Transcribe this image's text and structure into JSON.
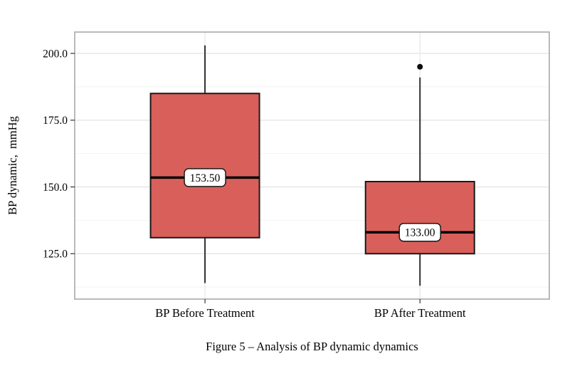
{
  "figure": {
    "caption": "Figure 5 – Analysis of BP dynamic dynamics",
    "background": "#ffffff"
  },
  "chart_data": {
    "type": "boxplot",
    "title": "",
    "xlabel": "",
    "ylabel": "BP dynamic,  mmHg",
    "ylim": [
      108,
      208
    ],
    "yticks": [
      125.0,
      150.0,
      175.0,
      200.0
    ],
    "ytick_labels": [
      "125.0",
      "150.0",
      "175.0",
      "200.0"
    ],
    "minor_gridlines": [
      112.5,
      137.5,
      162.5,
      187.5
    ],
    "grid": true,
    "legend": "none",
    "categories": [
      "BP Before Treatment",
      "BP After Treatment"
    ],
    "series": [
      {
        "name": "BP Before Treatment",
        "whisker_low": 114,
        "q1": 131,
        "median": 153.5,
        "q3": 185,
        "whisker_high": 203,
        "median_label": "153.50",
        "outliers": []
      },
      {
        "name": "BP After Treatment",
        "whisker_low": 113,
        "q1": 125,
        "median": 133,
        "q3": 152,
        "whisker_high": 191,
        "median_label": "133.00",
        "outliers": [
          195
        ]
      }
    ],
    "colors": {
      "box_fill": "#d9605a",
      "box_stroke": "#1a1a1a",
      "whisker_stroke": "#2f2f2f",
      "median_stroke": "#000000",
      "outlier_fill": "#0d0d0d",
      "panel_border": "#a9a9a9",
      "gridline_major": "#e2e2e2",
      "gridline_minor": "#f2f2f2",
      "gridline_category": "#eaeaea",
      "tick_color": "#333333",
      "label_box_fill": "#ffffff",
      "label_box_stroke": "#1a1a1a",
      "text_color": "#000000"
    }
  }
}
